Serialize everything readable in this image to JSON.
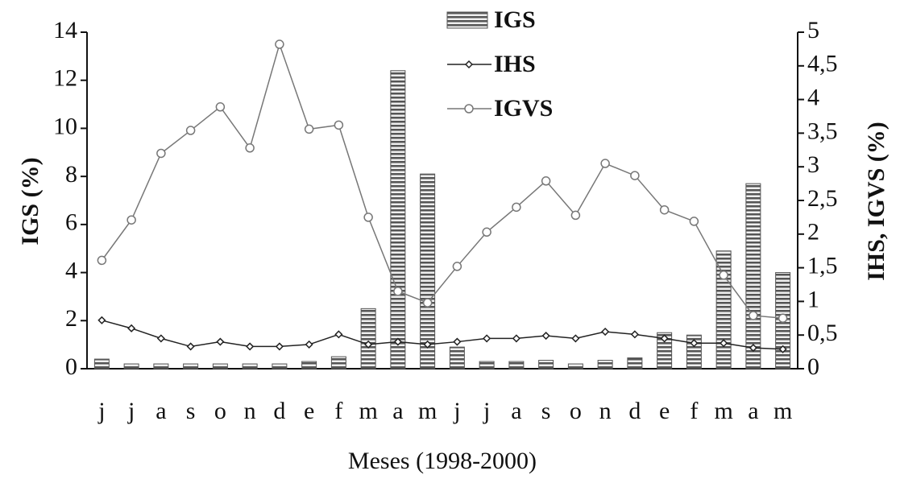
{
  "chart_data": {
    "type": "bar",
    "x_label": "Meses (1998-2000)",
    "y_label": "IGS (%)",
    "y2_label": "IHS, IGVS (%)",
    "categories": [
      "j",
      "j",
      "a",
      "s",
      "o",
      "n",
      "d",
      "e",
      "f",
      "m",
      "a",
      "m",
      "j",
      "j",
      "a",
      "s",
      "o",
      "n",
      "d",
      "e",
      "f",
      "m",
      "a",
      "m"
    ],
    "series": [
      {
        "name": "IGS",
        "type": "bar",
        "axis": "y",
        "color": "#555555",
        "values": [
          0.4,
          0.2,
          0.2,
          0.2,
          0.2,
          0.2,
          0.2,
          0.3,
          0.5,
          2.5,
          12.4,
          8.1,
          0.9,
          0.3,
          0.3,
          0.35,
          0.2,
          0.35,
          0.45,
          1.5,
          1.4,
          4.9,
          7.7,
          4.0
        ]
      },
      {
        "name": "IHS",
        "type": "line",
        "axis": "y2",
        "color": "#222222",
        "marker": "diamond",
        "values": [
          0.72,
          0.6,
          0.45,
          0.33,
          0.4,
          0.33,
          0.33,
          0.36,
          0.51,
          0.36,
          0.4,
          0.36,
          0.4,
          0.45,
          0.45,
          0.49,
          0.45,
          0.55,
          0.51,
          0.45,
          0.38,
          0.38,
          0.31,
          0.29
        ]
      },
      {
        "name": "IGVS",
        "type": "line",
        "axis": "y2",
        "color": "#777777",
        "marker": "circle",
        "values": [
          1.61,
          2.21,
          3.2,
          3.54,
          3.89,
          3.28,
          4.82,
          3.56,
          3.62,
          2.25,
          1.15,
          0.98,
          1.52,
          2.03,
          2.4,
          2.79,
          2.28,
          3.05,
          2.87,
          2.36,
          2.19,
          1.39,
          0.79,
          0.75
        ]
      }
    ],
    "ylim": [
      0,
      14
    ],
    "yticks": [
      0,
      2,
      4,
      6,
      8,
      10,
      12,
      14
    ],
    "y2lim": [
      0,
      5
    ],
    "y2ticks": [
      0,
      {
        "value": 0.5,
        "label": "0,5"
      },
      1,
      {
        "value": 1.5,
        "label": "1,5"
      },
      2,
      {
        "value": 2.5,
        "label": "2,5"
      },
      3,
      {
        "value": 3.5,
        "label": "3,5"
      },
      4,
      {
        "value": 4.5,
        "label": "4,5"
      },
      5
    ],
    "legend": "top"
  }
}
